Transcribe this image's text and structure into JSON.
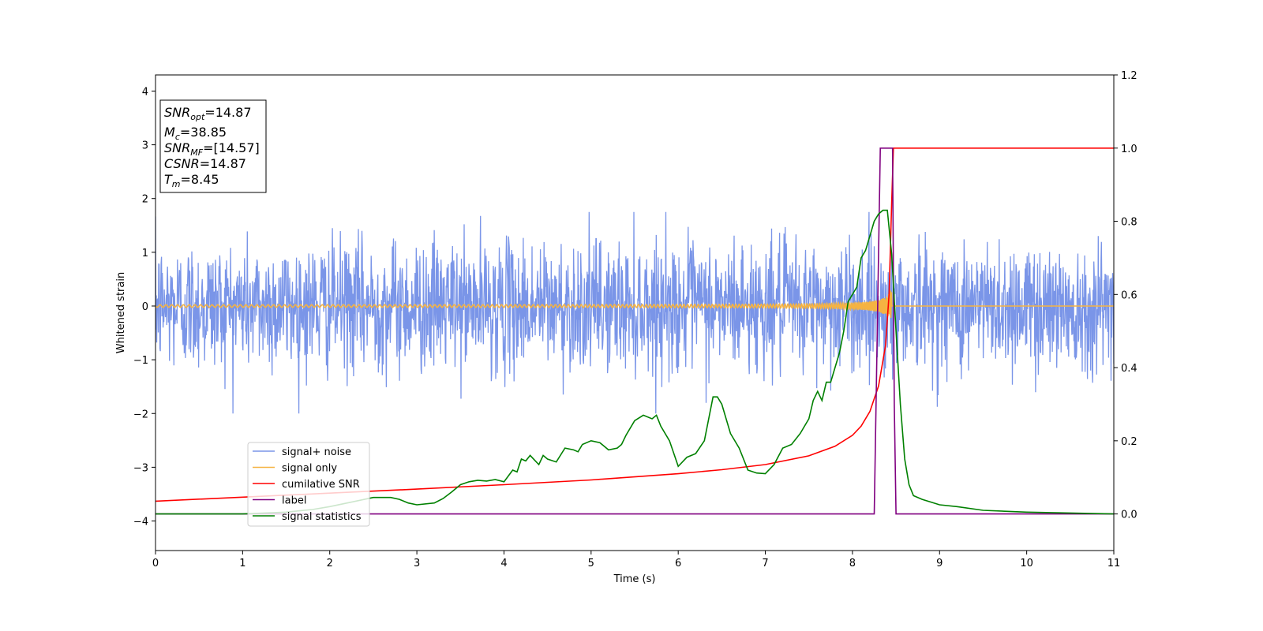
{
  "chart_data": {
    "type": "line",
    "xlabel": "Time (s)",
    "ylabel_left": "Whitened strain",
    "xlim": [
      0,
      11
    ],
    "ylim_left": [
      -4.55,
      4.3
    ],
    "ylim_right": [
      -0.1,
      1.2
    ],
    "x_ticks": [
      0,
      1,
      2,
      3,
      4,
      5,
      6,
      7,
      8,
      9,
      10,
      11
    ],
    "y_left_ticks": [
      -4,
      -3,
      -2,
      -1,
      0,
      1,
      2,
      3,
      4
    ],
    "y_right_ticks": [
      0.0,
      0.2,
      0.4,
      0.6,
      0.8,
      1.0,
      1.2
    ],
    "grid": false,
    "legend_position": "lower-left",
    "stats_box": [
      {
        "var": "SNR",
        "sub": "opt",
        "value": "=14.87"
      },
      {
        "var": "M",
        "sub": "c",
        "value": "=38.85"
      },
      {
        "var": "SNR",
        "sub": "MF",
        "value": "=[14.57]"
      },
      {
        "var": "CSNR",
        "sub": "",
        "value": "=14.87"
      },
      {
        "var": "T",
        "sub": "m",
        "value": "=8.45"
      }
    ],
    "series": [
      {
        "name": "signal+ noise",
        "axis": "left",
        "color": "#6b8ae6",
        "opacity": 0.9,
        "noise": {
          "std": 0.6,
          "clip": [
            -2.0,
            1.75
          ],
          "x_range": [
            0,
            11
          ]
        }
      },
      {
        "name": "signal only",
        "axis": "left",
        "color": "#f5b342",
        "chirp": {
          "t_merge": 8.45,
          "peak_amplitude": 0.45,
          "start_amplitude": 0.02
        }
      },
      {
        "name": "cumilative SNR",
        "axis": "right",
        "color": "#ff0000",
        "x": [
          0,
          1,
          2,
          3,
          4,
          5,
          6,
          6.5,
          7,
          7.5,
          7.8,
          8.0,
          8.1,
          8.2,
          8.3,
          8.38,
          8.42,
          8.45,
          8.47,
          11
        ],
        "y": [
          0.035,
          0.046,
          0.057,
          0.068,
          0.08,
          0.093,
          0.11,
          0.121,
          0.135,
          0.159,
          0.185,
          0.215,
          0.24,
          0.28,
          0.35,
          0.46,
          0.6,
          0.85,
          1.0,
          1.0
        ]
      },
      {
        "name": "label",
        "axis": "right",
        "color": "#800080",
        "x": [
          0,
          8.25,
          8.32,
          8.46,
          8.48,
          8.5,
          11
        ],
        "y": [
          0,
          0,
          1.0,
          1.0,
          0.3,
          0,
          0
        ]
      },
      {
        "name": "signal statistics",
        "axis": "right",
        "color": "#008000",
        "x": [
          0,
          1,
          1.5,
          1.8,
          2.0,
          2.2,
          2.5,
          2.7,
          2.8,
          2.9,
          3.0,
          3.2,
          3.3,
          3.4,
          3.5,
          3.6,
          3.7,
          3.8,
          3.9,
          4.0,
          4.1,
          4.15,
          4.2,
          4.25,
          4.3,
          4.4,
          4.45,
          4.5,
          4.6,
          4.7,
          4.8,
          4.85,
          4.9,
          5.0,
          5.1,
          5.2,
          5.3,
          5.35,
          5.4,
          5.5,
          5.6,
          5.7,
          5.75,
          5.8,
          5.9,
          6.0,
          6.1,
          6.2,
          6.3,
          6.35,
          6.4,
          6.45,
          6.5,
          6.6,
          6.7,
          6.8,
          6.9,
          7.0,
          7.1,
          7.2,
          7.3,
          7.4,
          7.5,
          7.55,
          7.6,
          7.65,
          7.7,
          7.75,
          7.8,
          7.85,
          7.9,
          7.95,
          8.0,
          8.05,
          8.1,
          8.15,
          8.2,
          8.25,
          8.3,
          8.35,
          8.4,
          8.45,
          8.5,
          8.55,
          8.6,
          8.65,
          8.7,
          8.8,
          9.0,
          9.2,
          9.5,
          10.0,
          11.0
        ],
        "y": [
          0.0,
          0.0,
          0.005,
          0.012,
          0.02,
          0.03,
          0.045,
          0.045,
          0.04,
          0.03,
          0.025,
          0.03,
          0.042,
          0.06,
          0.08,
          0.088,
          0.092,
          0.09,
          0.094,
          0.088,
          0.12,
          0.115,
          0.15,
          0.145,
          0.16,
          0.135,
          0.16,
          0.15,
          0.142,
          0.18,
          0.175,
          0.17,
          0.19,
          0.2,
          0.195,
          0.175,
          0.18,
          0.19,
          0.215,
          0.255,
          0.27,
          0.26,
          0.27,
          0.24,
          0.2,
          0.13,
          0.155,
          0.165,
          0.2,
          0.26,
          0.32,
          0.32,
          0.3,
          0.22,
          0.18,
          0.12,
          0.112,
          0.11,
          0.135,
          0.18,
          0.19,
          0.22,
          0.26,
          0.31,
          0.335,
          0.31,
          0.36,
          0.36,
          0.4,
          0.44,
          0.5,
          0.58,
          0.6,
          0.62,
          0.7,
          0.72,
          0.76,
          0.8,
          0.82,
          0.83,
          0.83,
          0.71,
          0.5,
          0.3,
          0.15,
          0.08,
          0.05,
          0.04,
          0.025,
          0.02,
          0.01,
          0.005,
          0.0
        ]
      }
    ]
  }
}
